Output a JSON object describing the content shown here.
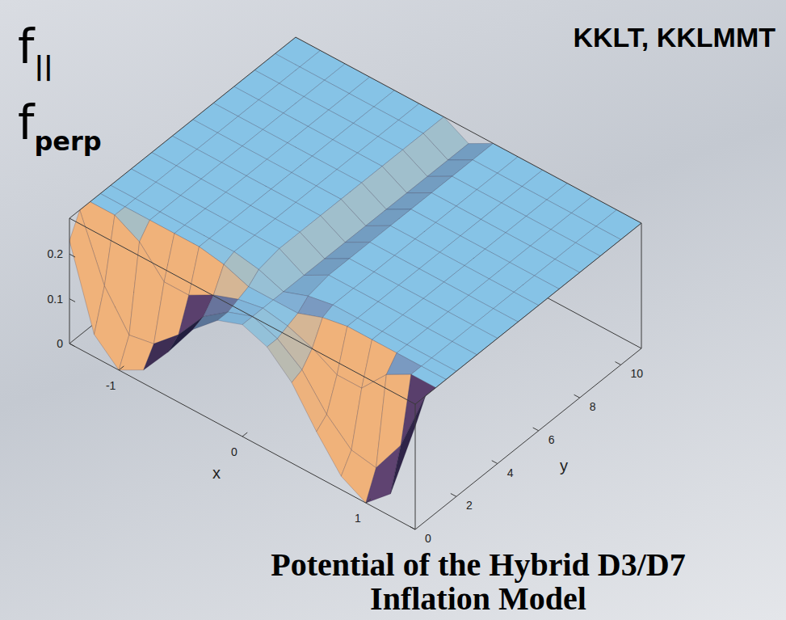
{
  "chart_data": {
    "type": "surface",
    "title": "Potential of the Hybrid D3/D7 Inflation Model",
    "xlabel": "x",
    "ylabel": "y",
    "x": [
      -1.4,
      -1.2,
      -1,
      -0.8,
      -0.6,
      -0.4,
      -0.2,
      0,
      0.2,
      0.4,
      0.6,
      0.8,
      1,
      1.2,
      1.4
    ],
    "y": [
      0,
      0.5,
      1,
      1.5,
      2,
      3,
      4,
      5,
      6,
      7,
      8,
      9,
      10,
      11
    ],
    "z": [
      [
        0.23,
        0.05,
        0,
        0.03,
        0.1,
        0.18,
        0.23,
        0.25,
        0.23,
        0.18,
        0.1,
        0.03,
        0,
        0.05,
        0.23
      ],
      [
        0.28,
        0.14,
        0.06,
        0.07,
        0.12,
        0.19,
        0.23,
        0.25,
        0.23,
        0.19,
        0.12,
        0.07,
        0.06,
        0.14,
        0.28
      ],
      [
        0.28,
        0.28,
        0.25,
        0.19,
        0.19,
        0.22,
        0.24,
        0.25,
        0.24,
        0.22,
        0.19,
        0.19,
        0.25,
        0.28,
        0.28
      ],
      [
        0.28,
        0.28,
        0.28,
        0.28,
        0.28,
        0.27,
        0.25,
        0.25,
        0.25,
        0.27,
        0.28,
        0.28,
        0.28,
        0.28,
        0.28
      ],
      [
        0.28,
        0.28,
        0.28,
        0.28,
        0.28,
        0.28,
        0.27,
        0.25,
        0.27,
        0.28,
        0.28,
        0.28,
        0.28,
        0.28,
        0.28
      ],
      [
        0.28,
        0.28,
        0.28,
        0.28,
        0.28,
        0.28,
        0.28,
        0.25,
        0.28,
        0.28,
        0.28,
        0.28,
        0.28,
        0.28,
        0.28
      ],
      [
        0.28,
        0.28,
        0.28,
        0.28,
        0.28,
        0.28,
        0.28,
        0.25,
        0.28,
        0.28,
        0.28,
        0.28,
        0.28,
        0.28,
        0.28
      ],
      [
        0.28,
        0.28,
        0.28,
        0.28,
        0.28,
        0.28,
        0.28,
        0.25,
        0.28,
        0.28,
        0.28,
        0.28,
        0.28,
        0.28,
        0.28
      ],
      [
        0.28,
        0.28,
        0.28,
        0.28,
        0.28,
        0.28,
        0.28,
        0.25,
        0.28,
        0.28,
        0.28,
        0.28,
        0.28,
        0.28,
        0.28
      ],
      [
        0.28,
        0.28,
        0.28,
        0.28,
        0.28,
        0.28,
        0.28,
        0.25,
        0.28,
        0.28,
        0.28,
        0.28,
        0.28,
        0.28,
        0.28
      ],
      [
        0.28,
        0.28,
        0.28,
        0.28,
        0.28,
        0.28,
        0.28,
        0.25,
        0.28,
        0.28,
        0.28,
        0.28,
        0.28,
        0.28,
        0.28
      ],
      [
        0.28,
        0.28,
        0.28,
        0.28,
        0.28,
        0.28,
        0.28,
        0.25,
        0.28,
        0.28,
        0.28,
        0.28,
        0.28,
        0.28,
        0.28
      ],
      [
        0.28,
        0.28,
        0.28,
        0.28,
        0.28,
        0.28,
        0.28,
        0.25,
        0.28,
        0.28,
        0.28,
        0.28,
        0.28,
        0.28,
        0.28
      ],
      [
        0.28,
        0.28,
        0.28,
        0.28,
        0.28,
        0.28,
        0.28,
        0.25,
        0.28,
        0.28,
        0.28,
        0.28,
        0.28,
        0.28,
        0.28
      ]
    ],
    "xlim": [
      -1.4,
      1.4
    ],
    "ylim": [
      0,
      11
    ],
    "zlim": [
      0,
      0.28
    ],
    "xticks": [
      -1,
      0,
      1
    ],
    "yticks": [
      0,
      2,
      4,
      6,
      8,
      10
    ],
    "zticks": [
      0,
      0.1,
      0.2
    ],
    "annotations": [
      {
        "text": "f",
        "subscript": "||"
      },
      {
        "text": "f",
        "subscript": "perp"
      },
      {
        "text": "KKLT, KKLMMT"
      }
    ]
  }
}
